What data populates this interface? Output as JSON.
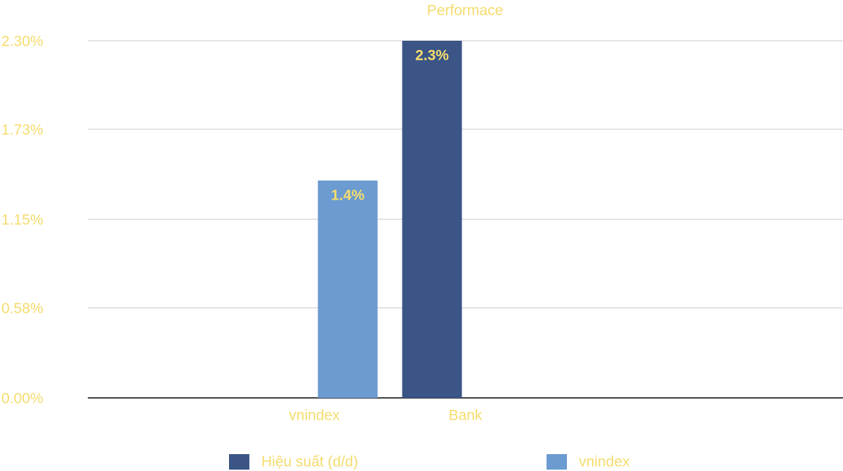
{
  "chart_data": {
    "type": "bar",
    "title": "Performace",
    "categories": [
      null,
      "vnindex",
      "Bank",
      null,
      null
    ],
    "series": [
      {
        "name": "Hiệu suất (d/d)",
        "color": "#3a5586",
        "values": [
          null,
          null,
          2.3,
          null,
          null
        ],
        "value_labels": [
          null,
          null,
          "2.3%",
          null,
          null
        ]
      },
      {
        "name": "vnindex",
        "color": "#6b9bd0",
        "values": [
          null,
          1.4,
          null,
          null,
          null
        ],
        "value_labels": [
          null,
          "1.4%",
          null,
          null,
          null
        ]
      }
    ],
    "ylim": [
      0,
      2.3
    ],
    "yticks": [
      {
        "value": 0,
        "label": "0.00%"
      },
      {
        "value": 0.58,
        "label": "0.58%"
      },
      {
        "value": 1.15,
        "label": "1.15%"
      },
      {
        "value": 1.73,
        "label": "1.73%"
      },
      {
        "value": 2.3,
        "label": "2.30%"
      }
    ],
    "grid": true,
    "legend": "bottom"
  }
}
